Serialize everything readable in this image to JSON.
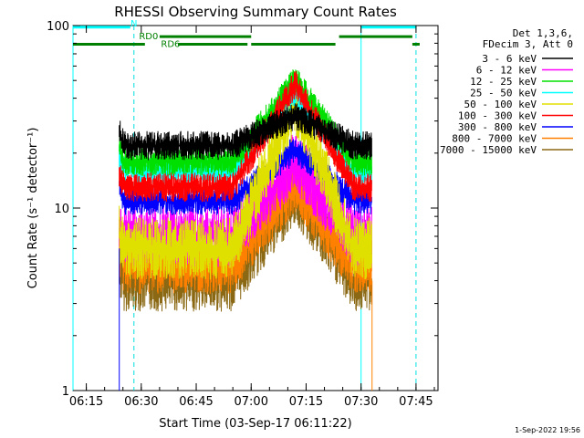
{
  "chart_data": {
    "type": "line",
    "title": "RHESSI Observing Summary Count Rates",
    "xlabel": "Start Time (03-Sep-17 06:11:22)",
    "ylabel": "Count Rate (s⁻¹ detector⁻¹)",
    "y_scale": "log",
    "ylim": [
      1,
      100
    ],
    "xlim_minutes": [
      "06:11:22",
      "07:51:00"
    ],
    "x_ticks": [
      "06:15",
      "06:30",
      "06:45",
      "07:00",
      "07:15",
      "07:30",
      "07:45"
    ],
    "y_ticks": [
      "1",
      "10",
      "100"
    ],
    "legend_placement": "right",
    "legend_header": [
      "Det 1,3,6,",
      "FDecim 3, Att 0"
    ],
    "series": [
      {
        "name": "3 - 6 keV",
        "color": "#000000",
        "base": 22,
        "peak": 32
      },
      {
        "name": "6 - 12 keV",
        "color": "#ff00ff",
        "base": 7,
        "peak": 18
      },
      {
        "name": "12 - 25 keV",
        "color": "#00e000",
        "base": 18,
        "peak": 50
      },
      {
        "name": "25 - 50 keV",
        "color": "#00ffff",
        "base": 16,
        "peak": 44
      },
      {
        "name": "50 - 100 keV",
        "color": "#e0e000",
        "base": 6,
        "peak": 38
      },
      {
        "name": "100 - 300 keV",
        "color": "#ff0000",
        "base": 13,
        "peak": 48
      },
      {
        "name": "300 - 800 keV",
        "color": "#0000ff",
        "base": 11,
        "peak": 21
      },
      {
        "name": "800 - 7000 keV",
        "color": "#ff8000",
        "base": 5,
        "peak": 14
      },
      {
        "name": "7000 - 15000 keV",
        "color": "#8b6914",
        "base": 4,
        "peak": 12
      }
    ],
    "data_start": "06:24:00",
    "data_end": "07:33:00",
    "peak_time": "07:12:00",
    "vlines_solid_cyan": [
      "06:11:22",
      "07:30:00"
    ],
    "vlines_dashed_cyan": [
      "06:28:00",
      "07:45:00"
    ],
    "flags": [
      {
        "label": "N",
        "color": "#00ffff",
        "level": 98,
        "segments": [
          [
            "06:11:22",
            "06:27:00"
          ],
          [
            "07:30:00",
            "07:45:00"
          ]
        ]
      },
      {
        "label": "RD0",
        "color": "#008000",
        "level": 87,
        "segments": [
          [
            "06:35:00",
            "07:00:00"
          ],
          [
            "07:24:00",
            "07:44:00"
          ]
        ]
      },
      {
        "label": "RD6",
        "color": "#008000",
        "level": 79,
        "segments": [
          [
            "06:11:22",
            "06:31:00"
          ],
          [
            "06:40:00",
            "06:59:00"
          ],
          [
            "07:00:00",
            "07:23:00"
          ],
          [
            "07:44:00",
            "07:46:00"
          ]
        ]
      }
    ],
    "footer_timestamp": "1-Sep-2022 19:56"
  }
}
